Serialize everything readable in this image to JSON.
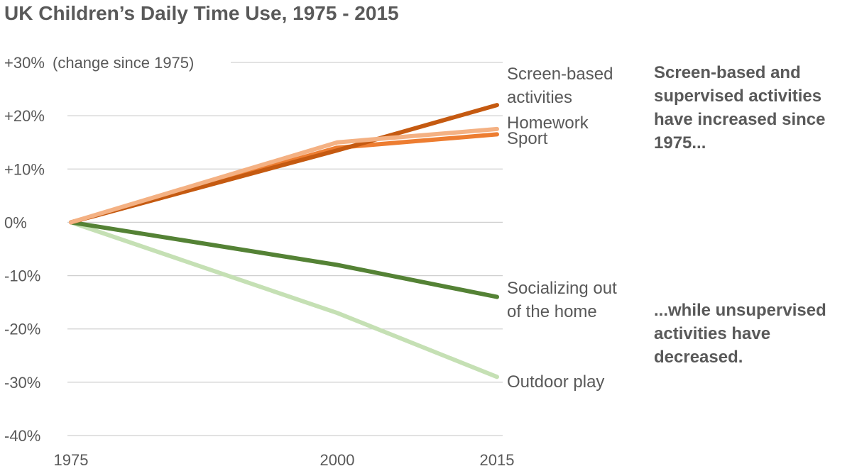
{
  "chart_data": {
    "type": "line",
    "title": "UK Children’s Daily Time Use, 1975 - 2015",
    "ylabel": "(change since 1975)",
    "x": [
      1975,
      2000,
      2015
    ],
    "x_tick_labels": [
      "1975",
      "2000",
      "2015"
    ],
    "ylim": [
      -40,
      30
    ],
    "y_ticks": [
      30,
      20,
      10,
      0,
      -10,
      -20,
      -30,
      -40
    ],
    "y_tick_labels": [
      "+30%",
      "+20%",
      "+10%",
      "0%",
      "-10%",
      "-20%",
      "-30%",
      "-40%"
    ],
    "grid": true,
    "series": [
      {
        "name": "Outdoor play",
        "label_lines": [
          "Outdoor play"
        ],
        "values": [
          0,
          -17,
          -29
        ],
        "color": "#c5e0b4"
      },
      {
        "name": "Socializing out of the home",
        "label_lines": [
          "Socializing out",
          "of the home"
        ],
        "values": [
          0,
          -8,
          -14
        ],
        "color": "#548235"
      },
      {
        "name": "Sport",
        "label_lines": [
          "Sport"
        ],
        "values": [
          0,
          14,
          16.5
        ],
        "color": "#ed7d31"
      },
      {
        "name": "Screen-based activities",
        "label_lines": [
          "Screen-based",
          "activities"
        ],
        "values": [
          0,
          13.5,
          22
        ],
        "color": "#c55a11"
      },
      {
        "name": "Homework",
        "label_lines": [
          "Homework"
        ],
        "values": [
          0,
          15,
          17.5
        ],
        "color": "#f4b183"
      }
    ],
    "annotations": [
      {
        "name": "increase-annotation",
        "lines": [
          "Screen-based and",
          "supervised activities",
          "have increased since",
          "1975..."
        ]
      },
      {
        "name": "decrease-annotation",
        "lines": [
          "...while unsupervised",
          "activities have",
          "decreased."
        ]
      }
    ]
  }
}
